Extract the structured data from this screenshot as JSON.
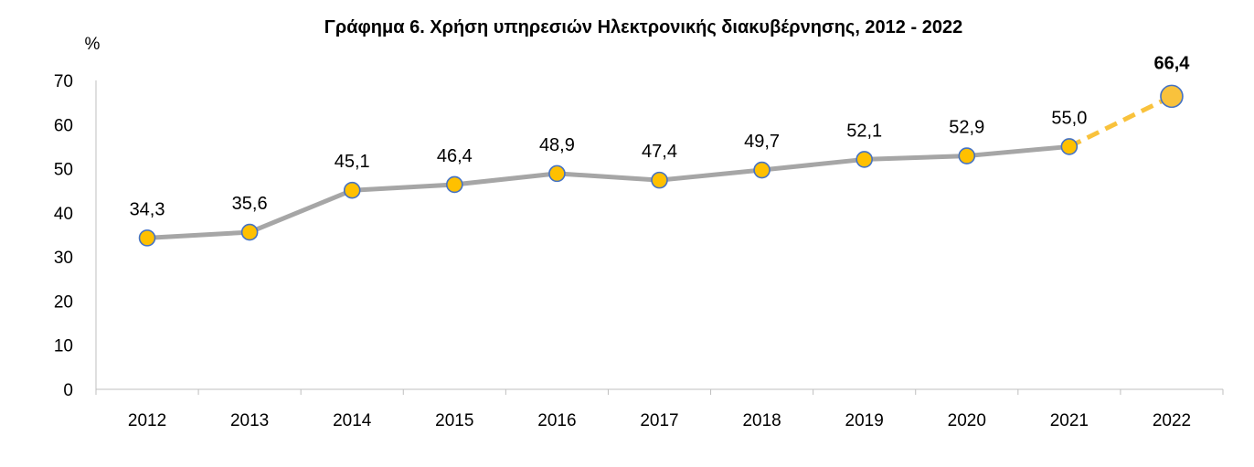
{
  "chart_data": {
    "type": "line",
    "title": "Γράφημα 6. Χρήση υπηρεσιών Ηλεκτρονικής διακυβέρνησης, 2012 - 2022",
    "ylabel": "%",
    "xlabel": "",
    "ylim": [
      0,
      70
    ],
    "yticks": [
      0,
      10,
      20,
      30,
      40,
      50,
      60,
      70
    ],
    "categories": [
      "2012",
      "2013",
      "2014",
      "2015",
      "2016",
      "2017",
      "2018",
      "2019",
      "2020",
      "2021",
      "2022"
    ],
    "values": [
      34.3,
      35.6,
      45.1,
      46.4,
      48.9,
      47.4,
      49.7,
      52.1,
      52.9,
      55.0,
      66.4
    ],
    "value_labels": [
      "34,3",
      "35,6",
      "45,1",
      "46,4",
      "48,9",
      "47,4",
      "49,7",
      "52,1",
      "52,9",
      "55,0",
      "66,4"
    ],
    "ytick_labels": [
      "0",
      "10",
      "20",
      "30",
      "40",
      "50",
      "60",
      "70"
    ],
    "highlight_index": 10,
    "highlight_segment": "dashed",
    "grid": false,
    "legend": "none"
  },
  "colors": {
    "line": "#A6A6A6",
    "marker_fill": "#FFC000",
    "marker_stroke": "#4472C4",
    "highlight": "#F9C23C",
    "axis": "#BFBFBF",
    "text": "#000000"
  }
}
